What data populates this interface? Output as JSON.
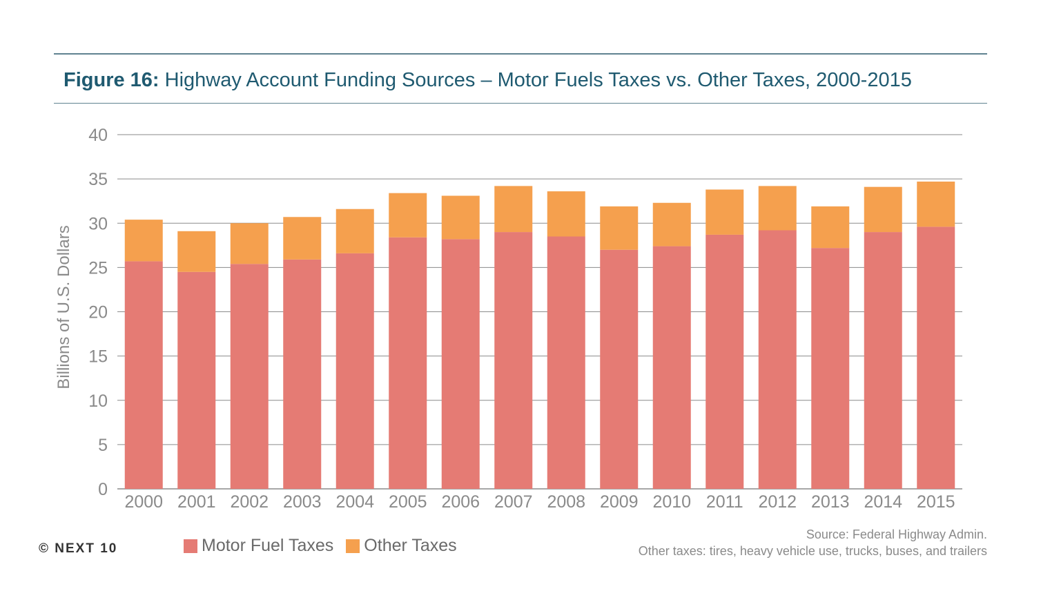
{
  "title": {
    "lead": "Figure 16:",
    "text": "Highway Account Funding Sources – Motor Fuels Taxes vs. Other Taxes, 2000-2015"
  },
  "footer": {
    "copyright": "© NEXT 10",
    "source": "Source: Federal Highway Admin.",
    "note": "Other taxes: tires, heavy vehicle use, trucks, buses, and trailers"
  },
  "colors": {
    "motor_fuel": "#e57b74",
    "other": "#f5a04e",
    "grid": "#8a8a8a",
    "tick_text": "#8a8a8a",
    "title": "#1f5a70"
  },
  "chart_data": {
    "type": "bar",
    "stacked": true,
    "title": "",
    "xlabel": "",
    "ylabel": "Billions of U.S. Dollars",
    "ylim": [
      0,
      40
    ],
    "yticks": [
      0,
      5,
      10,
      15,
      20,
      25,
      30,
      35,
      40
    ],
    "grid": true,
    "legend_position": "bottom",
    "categories": [
      "2000",
      "2001",
      "2002",
      "2003",
      "2004",
      "2005",
      "2006",
      "2007",
      "2008",
      "2009",
      "2010",
      "2011",
      "2012",
      "2013",
      "2014",
      "2015"
    ],
    "series": [
      {
        "name": "Motor Fuel Taxes",
        "color": "#e57b74",
        "values": [
          25.7,
          24.5,
          25.4,
          25.9,
          26.6,
          28.4,
          28.2,
          29.0,
          28.5,
          27.0,
          27.4,
          28.7,
          29.2,
          27.2,
          29.0,
          29.6
        ]
      },
      {
        "name": "Other Taxes",
        "color": "#f5a04e",
        "values": [
          4.7,
          4.6,
          4.6,
          4.8,
          5.0,
          5.0,
          4.9,
          5.2,
          5.1,
          4.9,
          4.9,
          5.1,
          5.0,
          4.7,
          5.1,
          5.1
        ]
      }
    ]
  }
}
